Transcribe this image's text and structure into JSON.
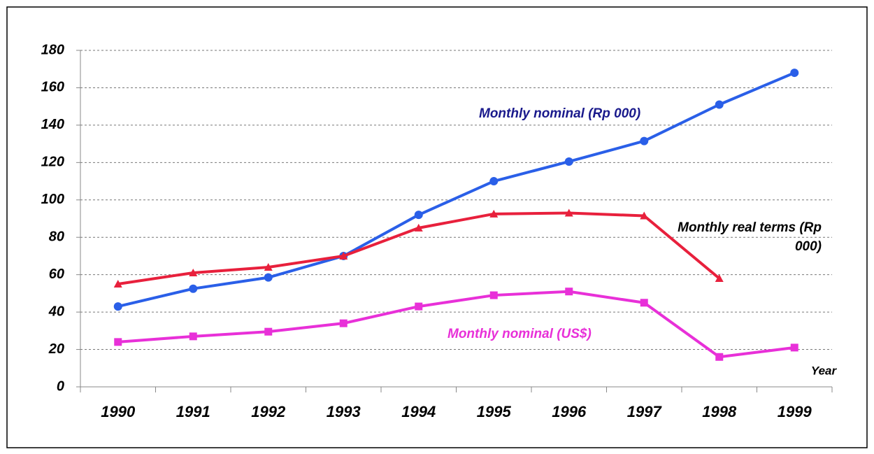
{
  "chart_data": {
    "type": "line",
    "categories": [
      "1990",
      "1991",
      "1992",
      "1993",
      "1994",
      "1995",
      "1996",
      "1997",
      "1998",
      "1999"
    ],
    "xlabel": "Year",
    "series": [
      {
        "name": "Monthly nominal (Rp 000)",
        "color": "#2a5fe8",
        "label_color": "#1a1a8c",
        "marker": "circle",
        "values": [
          43,
          52.5,
          58.5,
          70,
          92,
          110,
          120.5,
          131.5,
          151,
          168
        ]
      },
      {
        "name": "Monthly real terms (Rp 000)",
        "color": "#e8203c",
        "label_color": "#000000",
        "marker": "triangle",
        "values": [
          55,
          61,
          64,
          70,
          85,
          92.5,
          93,
          91.5,
          58,
          null
        ]
      },
      {
        "name": "Monthly nominal (US$)",
        "color": "#e830d8",
        "label_color": "#e830d8",
        "marker": "square",
        "values": [
          24,
          27,
          29.5,
          34,
          43,
          49,
          51,
          45,
          16,
          21
        ]
      }
    ],
    "ylim": [
      0,
      180
    ],
    "yticks": [
      0,
      20,
      40,
      60,
      80,
      100,
      120,
      140,
      160,
      180
    ],
    "grid": true
  }
}
